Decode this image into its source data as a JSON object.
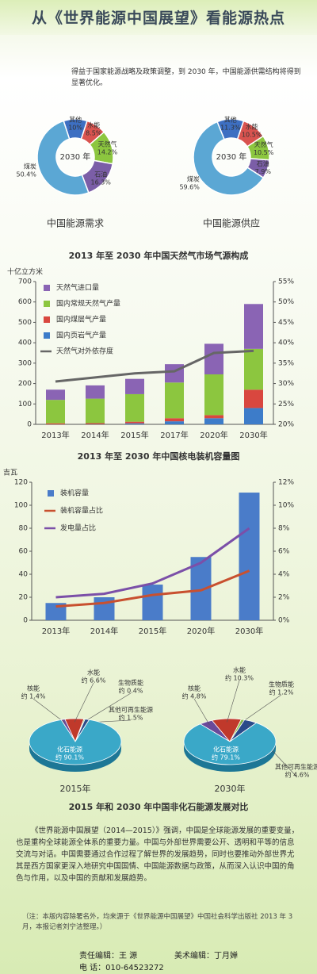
{
  "title": "从《世界能源中国展望》看能源热点",
  "intro": "得益于国家能源战略及政策调整，到 2030 年，中国能源供需结构将得到显著优化。",
  "pie_section_title": "2015 年和 2030 年中国非化石能源发展对比",
  "body": "《世界能源中国展望（2014—2015）》强调，中国是全球能源发展的重要变量，也是重构全球能源全体系的重要力量。中国与外部世界需要公开、透明和平等的信息交流与对话。中国需要通过合作过程了解世界的发展趋势，同时也要推动外部世界尤其是西方国家更深入地研究中国国情、中国能源数据与政策，从而深入认识中国的角色与作用，以及中国的贡献和发展趋势。",
  "note": "（注：本版内容除署名外，均来源于《世界能源中国展望》中国社会科学出版社 2013 年 3 月，本报记者刘宁洁整理。）",
  "footer": {
    "editor": "责任编辑：王 源",
    "art_editor": "美术编辑：丁月婵",
    "phone": "电 话：010-64523272"
  },
  "chart_data": [
    {
      "type": "donut",
      "title": "中国能源需求",
      "center_label": "2030 年",
      "categories": [
        "其他",
        "水能",
        "天然气",
        "石油",
        "煤炭"
      ],
      "values": [
        10,
        8.5,
        14.2,
        16.3,
        50.4
      ],
      "value_labels": [
        "10%",
        "8.5%",
        "14.2%",
        "16.3%",
        "50.4%"
      ],
      "colors": [
        "#3d6fc2",
        "#d9534f",
        "#8cc63f",
        "#7b5ea7",
        "#5ba7d4"
      ]
    },
    {
      "type": "donut",
      "title": "中国能源供应",
      "center_label": "2030 年",
      "categories": [
        "其他",
        "水能",
        "天然气",
        "石油",
        "煤炭"
      ],
      "values": [
        11.3,
        10.5,
        10.5,
        7.9,
        59.6
      ],
      "value_labels": [
        "11.3%",
        "10.5%",
        "10.5%",
        "7.9%",
        "59.6%"
      ],
      "colors": [
        "#3d6fc2",
        "#d9534f",
        "#8cc63f",
        "#7b5ea7",
        "#5ba7d4"
      ]
    },
    {
      "type": "stacked_bar_line",
      "title": "2013 年至 2030 年中国天然气市场气源构成",
      "y_label": "十亿立方米",
      "categories": [
        "2013年",
        "2014年",
        "2015年",
        "2017年",
        "2020年",
        "2030年"
      ],
      "ylim": [
        0,
        700
      ],
      "yticks": [
        0,
        100,
        200,
        300,
        400,
        500,
        600,
        700
      ],
      "y2lim": [
        20,
        55
      ],
      "y2ticks": [
        {
          "value": 20,
          "label": "20%"
        },
        {
          "value": 25,
          "label": "25%"
        },
        {
          "value": 30,
          "label": "30%"
        },
        {
          "value": 35,
          "label": "35%"
        },
        {
          "value": 40,
          "label": "40%"
        },
        {
          "value": 45,
          "label": "45%"
        },
        {
          "value": 50,
          "label": "50%"
        },
        {
          "value": 55,
          "label": "55%"
        }
      ],
      "grid": false,
      "series": [
        {
          "name": "国内页岩气产量",
          "color": "#3d7cc9",
          "values": [
            0,
            1,
            5,
            15,
            30,
            80
          ]
        },
        {
          "name": "国内煤层气产量",
          "color": "#d9473f",
          "values": [
            5,
            5,
            8,
            15,
            15,
            90
          ]
        },
        {
          "name": "国内常规天然气产量",
          "color": "#8cc63f",
          "values": [
            115,
            120,
            135,
            175,
            200,
            200
          ]
        },
        {
          "name": "天然气进口量",
          "color": "#8a64b4",
          "values": [
            50,
            65,
            75,
            90,
            150,
            220
          ]
        },
        {
          "name": "天然气对外依存度",
          "color": "#666666",
          "axis": "y2",
          "values": [
            30.5,
            31.5,
            32.5,
            33,
            37.5,
            38
          ]
        }
      ]
    },
    {
      "type": "bar_line",
      "title": "2013 年至 2030 年中国核电装机容量图",
      "y_label": "吉瓦",
      "categories": [
        "2013年",
        "2014年",
        "2015年",
        "2020年",
        "2030年"
      ],
      "ylim": [
        0,
        120
      ],
      "yticks": [
        0,
        20,
        40,
        60,
        80,
        100,
        120
      ],
      "y2lim": [
        0,
        12
      ],
      "y2ticks": [
        {
          "value": 0,
          "label": "0%"
        },
        {
          "value": 2,
          "label": "2%"
        },
        {
          "value": 4,
          "label": "4%"
        },
        {
          "value": 6,
          "label": "6%"
        },
        {
          "value": 8,
          "label": "8%"
        },
        {
          "value": 10,
          "label": "10%"
        },
        {
          "value": 12,
          "label": "12%"
        }
      ],
      "grid": false,
      "series": [
        {
          "name": "装机容量",
          "color": "#4a7cc9",
          "values": [
            15,
            20,
            31,
            55,
            111
          ]
        },
        {
          "name": "装机容量占比",
          "color": "#c8502f",
          "axis": "y2",
          "values": [
            1.2,
            1.5,
            2.2,
            2.6,
            4.3
          ]
        },
        {
          "name": "发电量占比",
          "color": "#7b4fa8",
          "axis": "y2",
          "values": [
            2.0,
            2.3,
            3.2,
            5.0,
            8.0
          ]
        }
      ]
    },
    {
      "type": "pie3d",
      "title": "2015年",
      "categories": [
        "核能",
        "水能",
        "生物质能",
        "其他可再生能源",
        "化石能源"
      ],
      "values": [
        1.4,
        6.6,
        0.4,
        1.5,
        90.1
      ],
      "value_labels": [
        "约 1.4%",
        "约 6.6%",
        "约 0.4%",
        "约 1.5%",
        "约 90.1%"
      ],
      "colors": [
        "#6a4a9a",
        "#c0392b",
        "#8bc34a",
        "#2a4a8a",
        "#3aa8c8"
      ]
    },
    {
      "type": "pie3d",
      "title": "2030年",
      "categories": [
        "核能",
        "水能",
        "生物质能",
        "其他可再生能源",
        "化石能源"
      ],
      "values": [
        4.8,
        10.3,
        1.2,
        4.6,
        79.1
      ],
      "value_labels": [
        "约 4.8%",
        "约 10.3%",
        "约 1.2%",
        "约 4.6%",
        "约 79.1%"
      ],
      "colors": [
        "#6a4a9a",
        "#c0392b",
        "#8bc34a",
        "#2a4a8a",
        "#3aa8c8"
      ]
    }
  ]
}
